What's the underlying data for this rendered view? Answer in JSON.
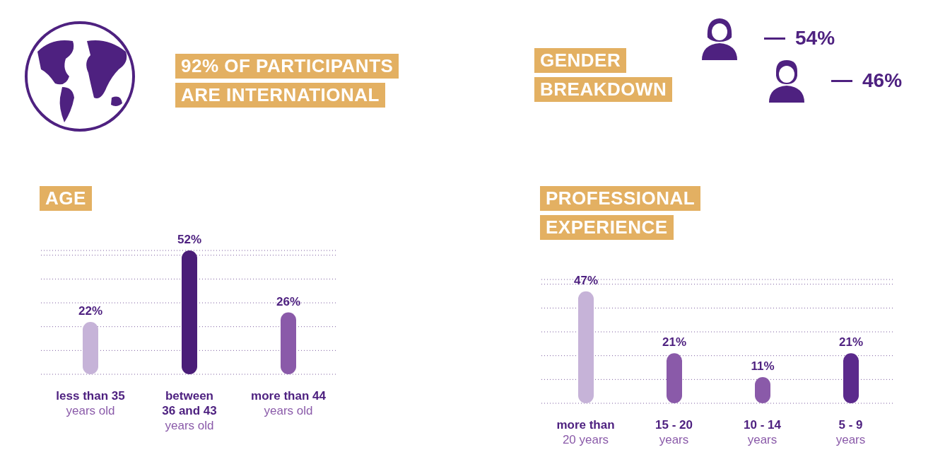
{
  "chart_data": [
    {
      "type": "other",
      "title": "92% OF PARTICIPANTS\nARE INTERNATIONAL"
    },
    {
      "type": "other",
      "title": "GENDER\nBREAKDOWN",
      "categories": [
        null,
        null
      ],
      "values": [
        54,
        46
      ],
      "value_labels": [
        "54%",
        "46%"
      ]
    },
    {
      "type": "bar",
      "title": "AGE",
      "categories": [
        "less than 35\nyears old",
        "between\n36 and 43\nyears old",
        "more than 44\nyears old"
      ],
      "values": [
        22,
        52,
        26
      ],
      "colors": [
        "#c6b3d8",
        "#4a1d78",
        "#8a5aa9"
      ],
      "value_labels": [
        "22%",
        "52%",
        "26%"
      ],
      "ylim": [
        0,
        52
      ],
      "yticks": [
        {
          "value": 0,
          "label": null
        },
        {
          "value": 10,
          "label": null
        },
        {
          "value": 20,
          "label": null
        },
        {
          "value": 30,
          "label": null
        },
        {
          "value": 40,
          "label": null
        },
        {
          "value": 50,
          "label": null
        }
      ],
      "grid": "y",
      "tick_labels": "x"
    },
    {
      "type": "bar",
      "title": "PROFESSIONAL\nEXPERIENCE",
      "categories": [
        "more than\n20 years",
        "15 - 20\nyears",
        "10 - 14\nyears",
        "5 - 9\nyears"
      ],
      "values": [
        47,
        21,
        11,
        21
      ],
      "colors": [
        "#c6b3d8",
        "#8a5aa9",
        "#8a5aa9",
        "#5b2a8c"
      ],
      "value_labels": [
        "47%",
        "21%",
        "11%",
        "21%"
      ],
      "ylim": [
        0,
        52
      ],
      "yticks": [
        {
          "value": 0,
          "label": null
        },
        {
          "value": 10,
          "label": null
        },
        {
          "value": 20,
          "label": null
        },
        {
          "value": 30,
          "label": null
        },
        {
          "value": 40,
          "label": null
        },
        {
          "value": 50,
          "label": null
        }
      ],
      "grid": "y",
      "tick_labels": "x"
    }
  ]
}
